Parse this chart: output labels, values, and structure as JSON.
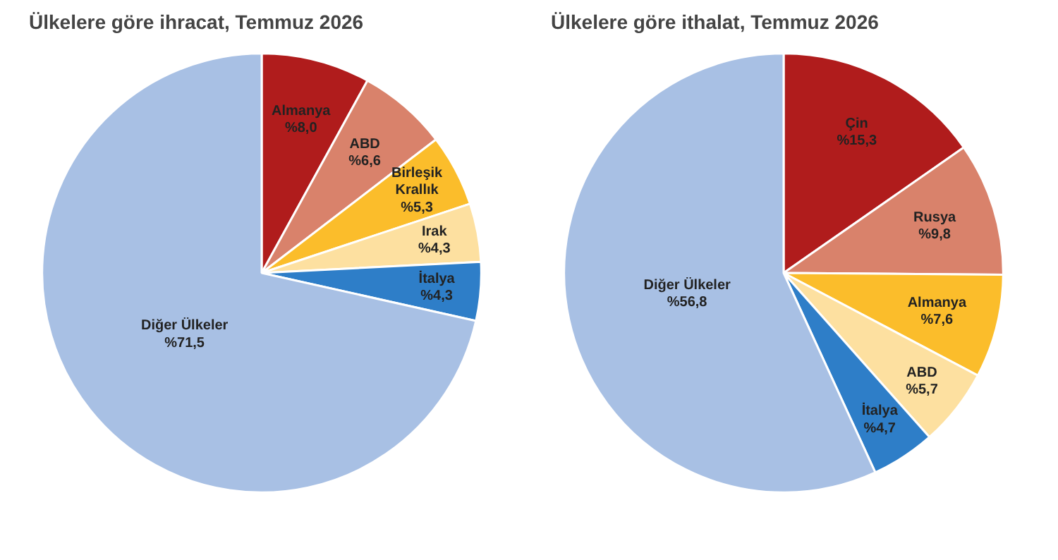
{
  "chart_data": [
    {
      "type": "pie",
      "title": "Ülkelere göre ihracat, Temmuz 2026",
      "categories": [
        "Almanya",
        "ABD",
        "Birleşik Krallık",
        "Irak",
        "İtalya",
        "Diğer Ülkeler"
      ],
      "values": [
        8.0,
        6.6,
        5.3,
        4.3,
        4.3,
        71.5
      ],
      "colors": [
        "#b01c1c",
        "#d9826b",
        "#fbbd2b",
        "#fde0a0",
        "#2e7ec8",
        "#a8c0e4"
      ],
      "value_labels": [
        "%8,0",
        "%6,6",
        "%5,3",
        "%4,3",
        "%4,3",
        "%71,5"
      ]
    },
    {
      "type": "pie",
      "title": "Ülkelere göre ithalat, Temmuz 2026",
      "categories": [
        "Çin",
        "Rusya",
        "Almanya",
        "ABD",
        "İtalya",
        "Diğer Ülkeler"
      ],
      "values": [
        15.3,
        9.8,
        7.6,
        5.7,
        4.7,
        56.8
      ],
      "colors": [
        "#b01c1c",
        "#d9826b",
        "#fbbd2b",
        "#fde0a0",
        "#2e7ec8",
        "#a8c0e4"
      ],
      "value_labels": [
        "%15,3",
        "%9,8",
        "%7,6",
        "%5,7",
        "%4,7",
        "%56,8"
      ]
    }
  ]
}
